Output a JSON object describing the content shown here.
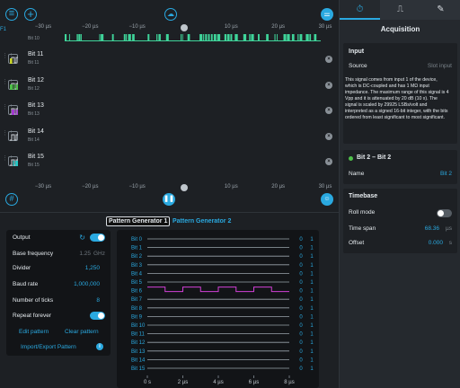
{
  "axis": {
    "ticks": [
      "−30 µs",
      "−20 µs",
      "−10 µs",
      "0",
      "10 µs",
      "20 µs",
      "30 µs"
    ]
  },
  "header": {
    "partial_row": "Bit 10",
    "corner_label": "F1"
  },
  "signals": [
    {
      "name": "Bit 11",
      "sub": "Bit 11",
      "color": "#c8d42a"
    },
    {
      "name": "Bit 12",
      "sub": "Bit 12",
      "color": "#4fc04a"
    },
    {
      "name": "Bit 13",
      "sub": "Bit 13",
      "color": "#a53ad1"
    },
    {
      "name": "Bit 14",
      "sub": "Bit 14",
      "color": "#e3297a"
    },
    {
      "name": "Bit 15",
      "sub": "Bit 15",
      "color": "#28c6c4"
    }
  ],
  "partial_color": "#3fd49a",
  "generator_tabs": [
    "Pattern Generator 1",
    "Pattern Generator 2"
  ],
  "generator": {
    "output_label": "Output",
    "base_freq_label": "Base frequency",
    "base_freq_value": "1.25",
    "base_freq_unit": "GHz",
    "divider_label": "Divider",
    "divider_value": "1,250",
    "baud_label": "Baud rate",
    "baud_value": "1,000,000",
    "ticks_label": "Number of ticks",
    "ticks_value": "8",
    "repeat_label": "Repeat forever",
    "edit_label": "Edit pattern",
    "clear_label": "Clear pattern",
    "import_label": "Import/Export Pattern"
  },
  "pattern": {
    "bits": [
      "Bit 0",
      "Bit 1",
      "Bit 2",
      "Bit 3",
      "Bit 4",
      "Bit 5",
      "Bit 6",
      "Bit 7",
      "Bit 8",
      "Bit 9",
      "Bit 10",
      "Bit 11",
      "Bit 12",
      "Bit 13",
      "Bit 14",
      "Bit 15"
    ],
    "x_ticks": [
      "0 s",
      "2 µs",
      "4 µs",
      "6 µs",
      "8 µs"
    ],
    "low_label": "0",
    "high_label": "1",
    "active_bit": 6,
    "active_states": [
      1,
      0,
      1,
      0,
      1,
      0,
      1,
      0
    ]
  },
  "right": {
    "tabs": [
      "stopwatch-icon",
      "step-icon",
      "pen-icon"
    ],
    "title": "Acquisition",
    "input_head": "Input",
    "source_label": "Source",
    "source_value": "Slot input",
    "description": "This signal comes from input 1 of the device, which is DC-coupled and has 1 MΩ input impedance. The maximum range of this signal is 4 Vpp and it is attenuated by 20 dB (10 x). The signal is scaled by 29925 LSBs/volt and interpreted as a signed 16-bit integer, with the bits ordered from least significant to most significant.",
    "group_head": "Bit 2 – Bit 2",
    "name_label": "Name",
    "name_value": "Bit 2",
    "timebase_head": "Timebase",
    "roll_label": "Roll mode",
    "span_label": "Time span",
    "span_value": "68.36",
    "span_unit": "µs",
    "offset_label": "Offset",
    "offset_value": "0.000",
    "offset_unit": "s"
  }
}
